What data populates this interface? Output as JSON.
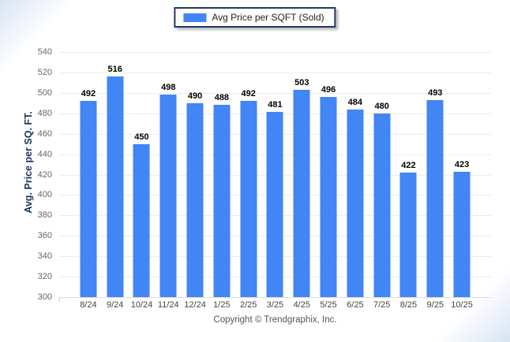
{
  "footer": {
    "copyright": "Copyright © Trendgraphix, Inc."
  },
  "chart_data": {
    "type": "bar",
    "categories": [
      "8/24",
      "9/24",
      "10/24",
      "11/24",
      "12/24",
      "1/25",
      "2/25",
      "3/25",
      "4/25",
      "5/25",
      "6/25",
      "7/25",
      "8/25",
      "9/25",
      "10/25"
    ],
    "series": [
      {
        "name": "Avg Price per SQFT (Sold)",
        "color": "#4285F4",
        "values": [
          492,
          516,
          450,
          498,
          490,
          488,
          492,
          481,
          503,
          496,
          484,
          480,
          422,
          493,
          423
        ]
      }
    ],
    "xlabel": "",
    "ylabel": "Avg. Price per SQ. FT.",
    "ylim": [
      300,
      540
    ],
    "ytick_step": 20,
    "grid": true,
    "legend_position": "top"
  }
}
